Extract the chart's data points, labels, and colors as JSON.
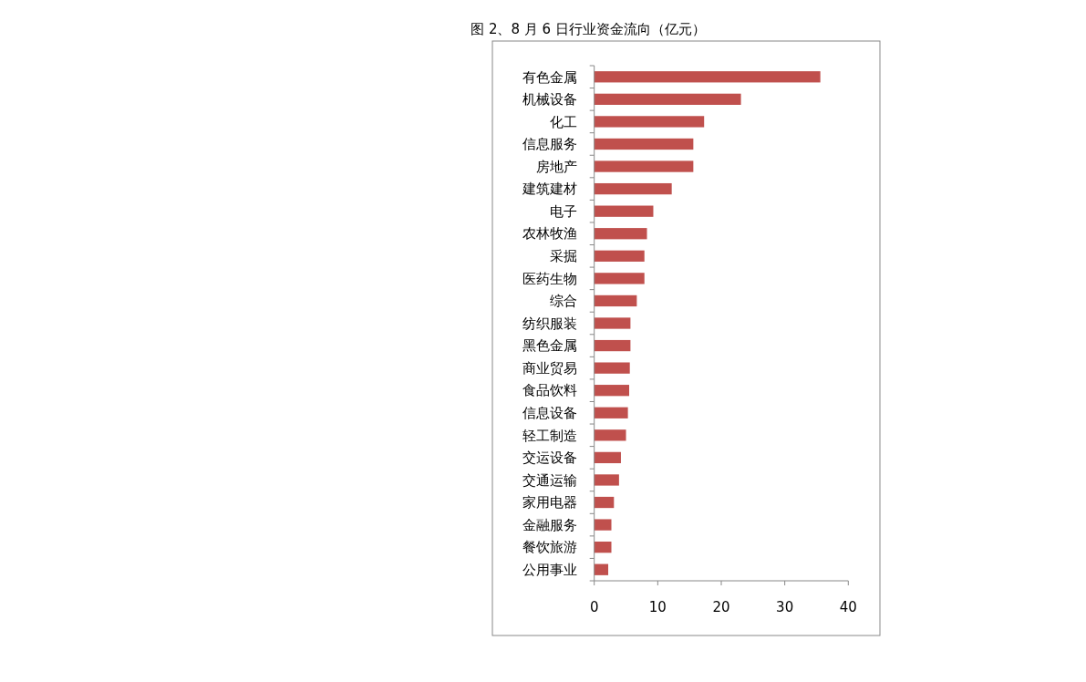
{
  "chart_data": {
    "type": "bar",
    "orientation": "horizontal",
    "title": "图 2、8 月 6 日行业资金流向（亿元）",
    "categories": [
      "有色金属",
      "机械设备",
      "化工",
      "信息服务",
      "房地产",
      "建筑建材",
      "电子",
      "农林牧渔",
      "采掘",
      "医药生物",
      "综合",
      "纺织服装",
      "黑色金属",
      "商业贸易",
      "食品饮料",
      "信息设备",
      "轻工制造",
      "交运设备",
      "交通运输",
      "家用电器",
      "金融服务",
      "餐饮旅游",
      "公用事业"
    ],
    "values": [
      35.6,
      23.1,
      17.3,
      15.6,
      15.6,
      12.2,
      9.3,
      8.3,
      7.9,
      7.9,
      6.7,
      5.7,
      5.7,
      5.6,
      5.5,
      5.3,
      5.0,
      4.2,
      3.9,
      3.1,
      2.7,
      2.7,
      2.2
    ],
    "color": "#c0504d",
    "xlim": [
      0,
      40
    ],
    "xticks": [
      0,
      10,
      20,
      30,
      40
    ],
    "grid": false
  }
}
